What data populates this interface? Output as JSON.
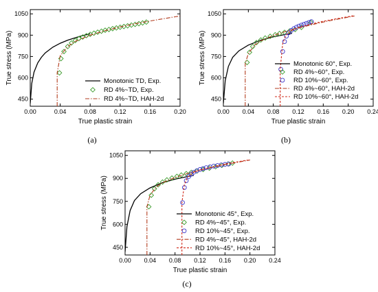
{
  "colors": {
    "monotonic": "#000000",
    "exp4": "#3a9a2a",
    "exp10": "#3a35c8",
    "hah4": "#b23a1c",
    "hah10": "#d02a1a"
  },
  "chart_data": [
    {
      "type": "line",
      "panel_label": "(a)",
      "xlabel": "True plastic strain",
      "ylabel": "True stress (MPa)",
      "xlim": [
        0,
        0.2
      ],
      "ylim": [
        400,
        1080
      ],
      "xticks": [
        "0.00",
        "0.04",
        "0.08",
        "0.12",
        "0.16",
        "0.20"
      ],
      "yticks": [
        "450",
        "600",
        "750",
        "900",
        "1050"
      ],
      "legend_position": "lower-right",
      "series": [
        {
          "name": "Monotonic TD, Exp.",
          "style": "line",
          "x": [
            0.0,
            0.002,
            0.005,
            0.01,
            0.015,
            0.02,
            0.03,
            0.04,
            0.05,
            0.06,
            0.07,
            0.08
          ],
          "y": [
            420,
            560,
            640,
            705,
            745,
            775,
            815,
            843,
            865,
            882,
            897,
            910
          ]
        },
        {
          "name": "RD 4%~TD, Exp.",
          "style": "diamond",
          "x": [
            0.039,
            0.041,
            0.045,
            0.05,
            0.055,
            0.06,
            0.065,
            0.07,
            0.075,
            0.08,
            0.085,
            0.09,
            0.095,
            0.1,
            0.105,
            0.11,
            0.115,
            0.12,
            0.125,
            0.13,
            0.135,
            0.14,
            0.145,
            0.15,
            0.155
          ],
          "y": [
            635,
            735,
            785,
            820,
            845,
            862,
            876,
            887,
            897,
            906,
            914,
            921,
            928,
            935,
            940,
            946,
            951,
            956,
            961,
            966,
            971,
            976,
            981,
            986,
            992
          ]
        },
        {
          "name": "RD 4%~TD, HAH-2d",
          "style": "dashdot",
          "x": [
            0.036,
            0.036,
            0.04,
            0.05,
            0.06,
            0.08,
            0.1,
            0.12,
            0.14,
            0.16,
            0.18,
            0.2
          ],
          "y": [
            400,
            635,
            755,
            820,
            856,
            900,
            932,
            958,
            980,
            1000,
            1018,
            1035
          ]
        }
      ]
    },
    {
      "type": "line",
      "panel_label": "(b)",
      "xlabel": "True plastic strain",
      "ylabel": "True stress (MPa)",
      "xlim": [
        0,
        0.24
      ],
      "ylim": [
        400,
        1080
      ],
      "xticks": [
        "0.00",
        "0.04",
        "0.08",
        "0.12",
        "0.16",
        "0.20",
        "0.24"
      ],
      "yticks": [
        "450",
        "600",
        "750",
        "900",
        "1050"
      ],
      "legend_position": "lower-right",
      "series": [
        {
          "name": "Monotonic 60°, Exp.",
          "style": "line",
          "x": [
            0.0,
            0.003,
            0.008,
            0.015,
            0.025,
            0.04,
            0.06,
            0.08,
            0.1,
            0.11
          ],
          "y": [
            420,
            580,
            680,
            745,
            790,
            830,
            865,
            888,
            906,
            913
          ]
        },
        {
          "name": "RD 4%~60°, Exp.",
          "style": "diamond",
          "x": [
            0.038,
            0.042,
            0.047,
            0.053,
            0.06,
            0.067,
            0.075,
            0.083,
            0.09,
            0.098,
            0.106,
            0.115,
            0.125,
            0.14
          ],
          "y": [
            708,
            780,
            820,
            848,
            866,
            880,
            892,
            903,
            912,
            920,
            929,
            940,
            955,
            990
          ]
        },
        {
          "name": "RD 10%~60°, Exp.",
          "style": "circle",
          "x": [
            0.092,
            0.095,
            0.098,
            0.101,
            0.105,
            0.109,
            0.113,
            0.117,
            0.121,
            0.125,
            0.129,
            0.133,
            0.137,
            0.141
          ],
          "y": [
            660,
            785,
            855,
            893,
            918,
            934,
            946,
            956,
            964,
            971,
            977,
            983,
            989,
            995
          ]
        },
        {
          "name": "RD 4%~60°, HAH-2d",
          "style": "dashdot",
          "x": [
            0.035,
            0.035,
            0.04,
            0.05,
            0.06,
            0.08,
            0.1,
            0.12,
            0.14,
            0.16,
            0.18,
            0.21
          ],
          "y": [
            400,
            700,
            770,
            830,
            860,
            898,
            926,
            950,
            972,
            992,
            1010,
            1035
          ]
        },
        {
          "name": "RD 10%~60°, HAH-2d",
          "style": "dashed",
          "x": [
            0.091,
            0.091,
            0.095,
            0.1,
            0.11,
            0.12,
            0.14,
            0.16,
            0.18,
            0.21
          ],
          "y": [
            400,
            660,
            840,
            900,
            935,
            955,
            978,
            998,
            1015,
            1038
          ]
        }
      ]
    },
    {
      "type": "line",
      "panel_label": "(c)",
      "xlabel": "True plastic strain",
      "ylabel": "True stress (MPa)",
      "xlim": [
        0,
        0.24
      ],
      "ylim": [
        400,
        1080
      ],
      "xticks": [
        "0.00",
        "0.04",
        "0.08",
        "0.12",
        "0.16",
        "0.20",
        "0.24"
      ],
      "yticks": [
        "450",
        "600",
        "750",
        "900",
        "1050"
      ],
      "legend_position": "lower-right",
      "series": [
        {
          "name": "Monotonic 45°, Exp.",
          "style": "line",
          "x": [
            0.0,
            0.003,
            0.008,
            0.015,
            0.025,
            0.04,
            0.06,
            0.08,
            0.1,
            0.11
          ],
          "y": [
            420,
            585,
            690,
            755,
            800,
            838,
            872,
            895,
            912,
            920
          ]
        },
        {
          "name": "RD 4%~45°, Exp.",
          "style": "diamond",
          "x": [
            0.038,
            0.042,
            0.047,
            0.053,
            0.06,
            0.067,
            0.075,
            0.083,
            0.09,
            0.098,
            0.106,
            0.115,
            0.125,
            0.135,
            0.145,
            0.155,
            0.165,
            0.172
          ],
          "y": [
            715,
            790,
            832,
            858,
            876,
            890,
            902,
            913,
            922,
            931,
            939,
            948,
            958,
            967,
            976,
            985,
            994,
            1000
          ]
        },
        {
          "name": "RD 10%~45°, Exp.",
          "style": "circle",
          "x": [
            0.092,
            0.095,
            0.098,
            0.102,
            0.106,
            0.11,
            0.115,
            0.12,
            0.125,
            0.13,
            0.136,
            0.142,
            0.148,
            0.154,
            0.16,
            0.166
          ],
          "y": [
            742,
            840,
            885,
            912,
            928,
            940,
            950,
            958,
            964,
            970,
            975,
            980,
            984,
            988,
            991,
            994
          ]
        },
        {
          "name": "RD 4%~45°, HAH-2d",
          "style": "dashdot",
          "x": [
            0.035,
            0.035,
            0.04,
            0.05,
            0.06,
            0.08,
            0.1,
            0.12,
            0.14,
            0.16,
            0.18,
            0.2
          ],
          "y": [
            400,
            715,
            790,
            845,
            872,
            906,
            932,
            954,
            973,
            990,
            1005,
            1020
          ]
        },
        {
          "name": "RD 10%~45°, HAH-2d",
          "style": "dashed",
          "x": [
            0.091,
            0.091,
            0.095,
            0.1,
            0.11,
            0.12,
            0.14,
            0.16,
            0.18,
            0.2
          ],
          "y": [
            400,
            742,
            860,
            908,
            940,
            955,
            975,
            993,
            1008,
            1022
          ]
        }
      ]
    }
  ]
}
